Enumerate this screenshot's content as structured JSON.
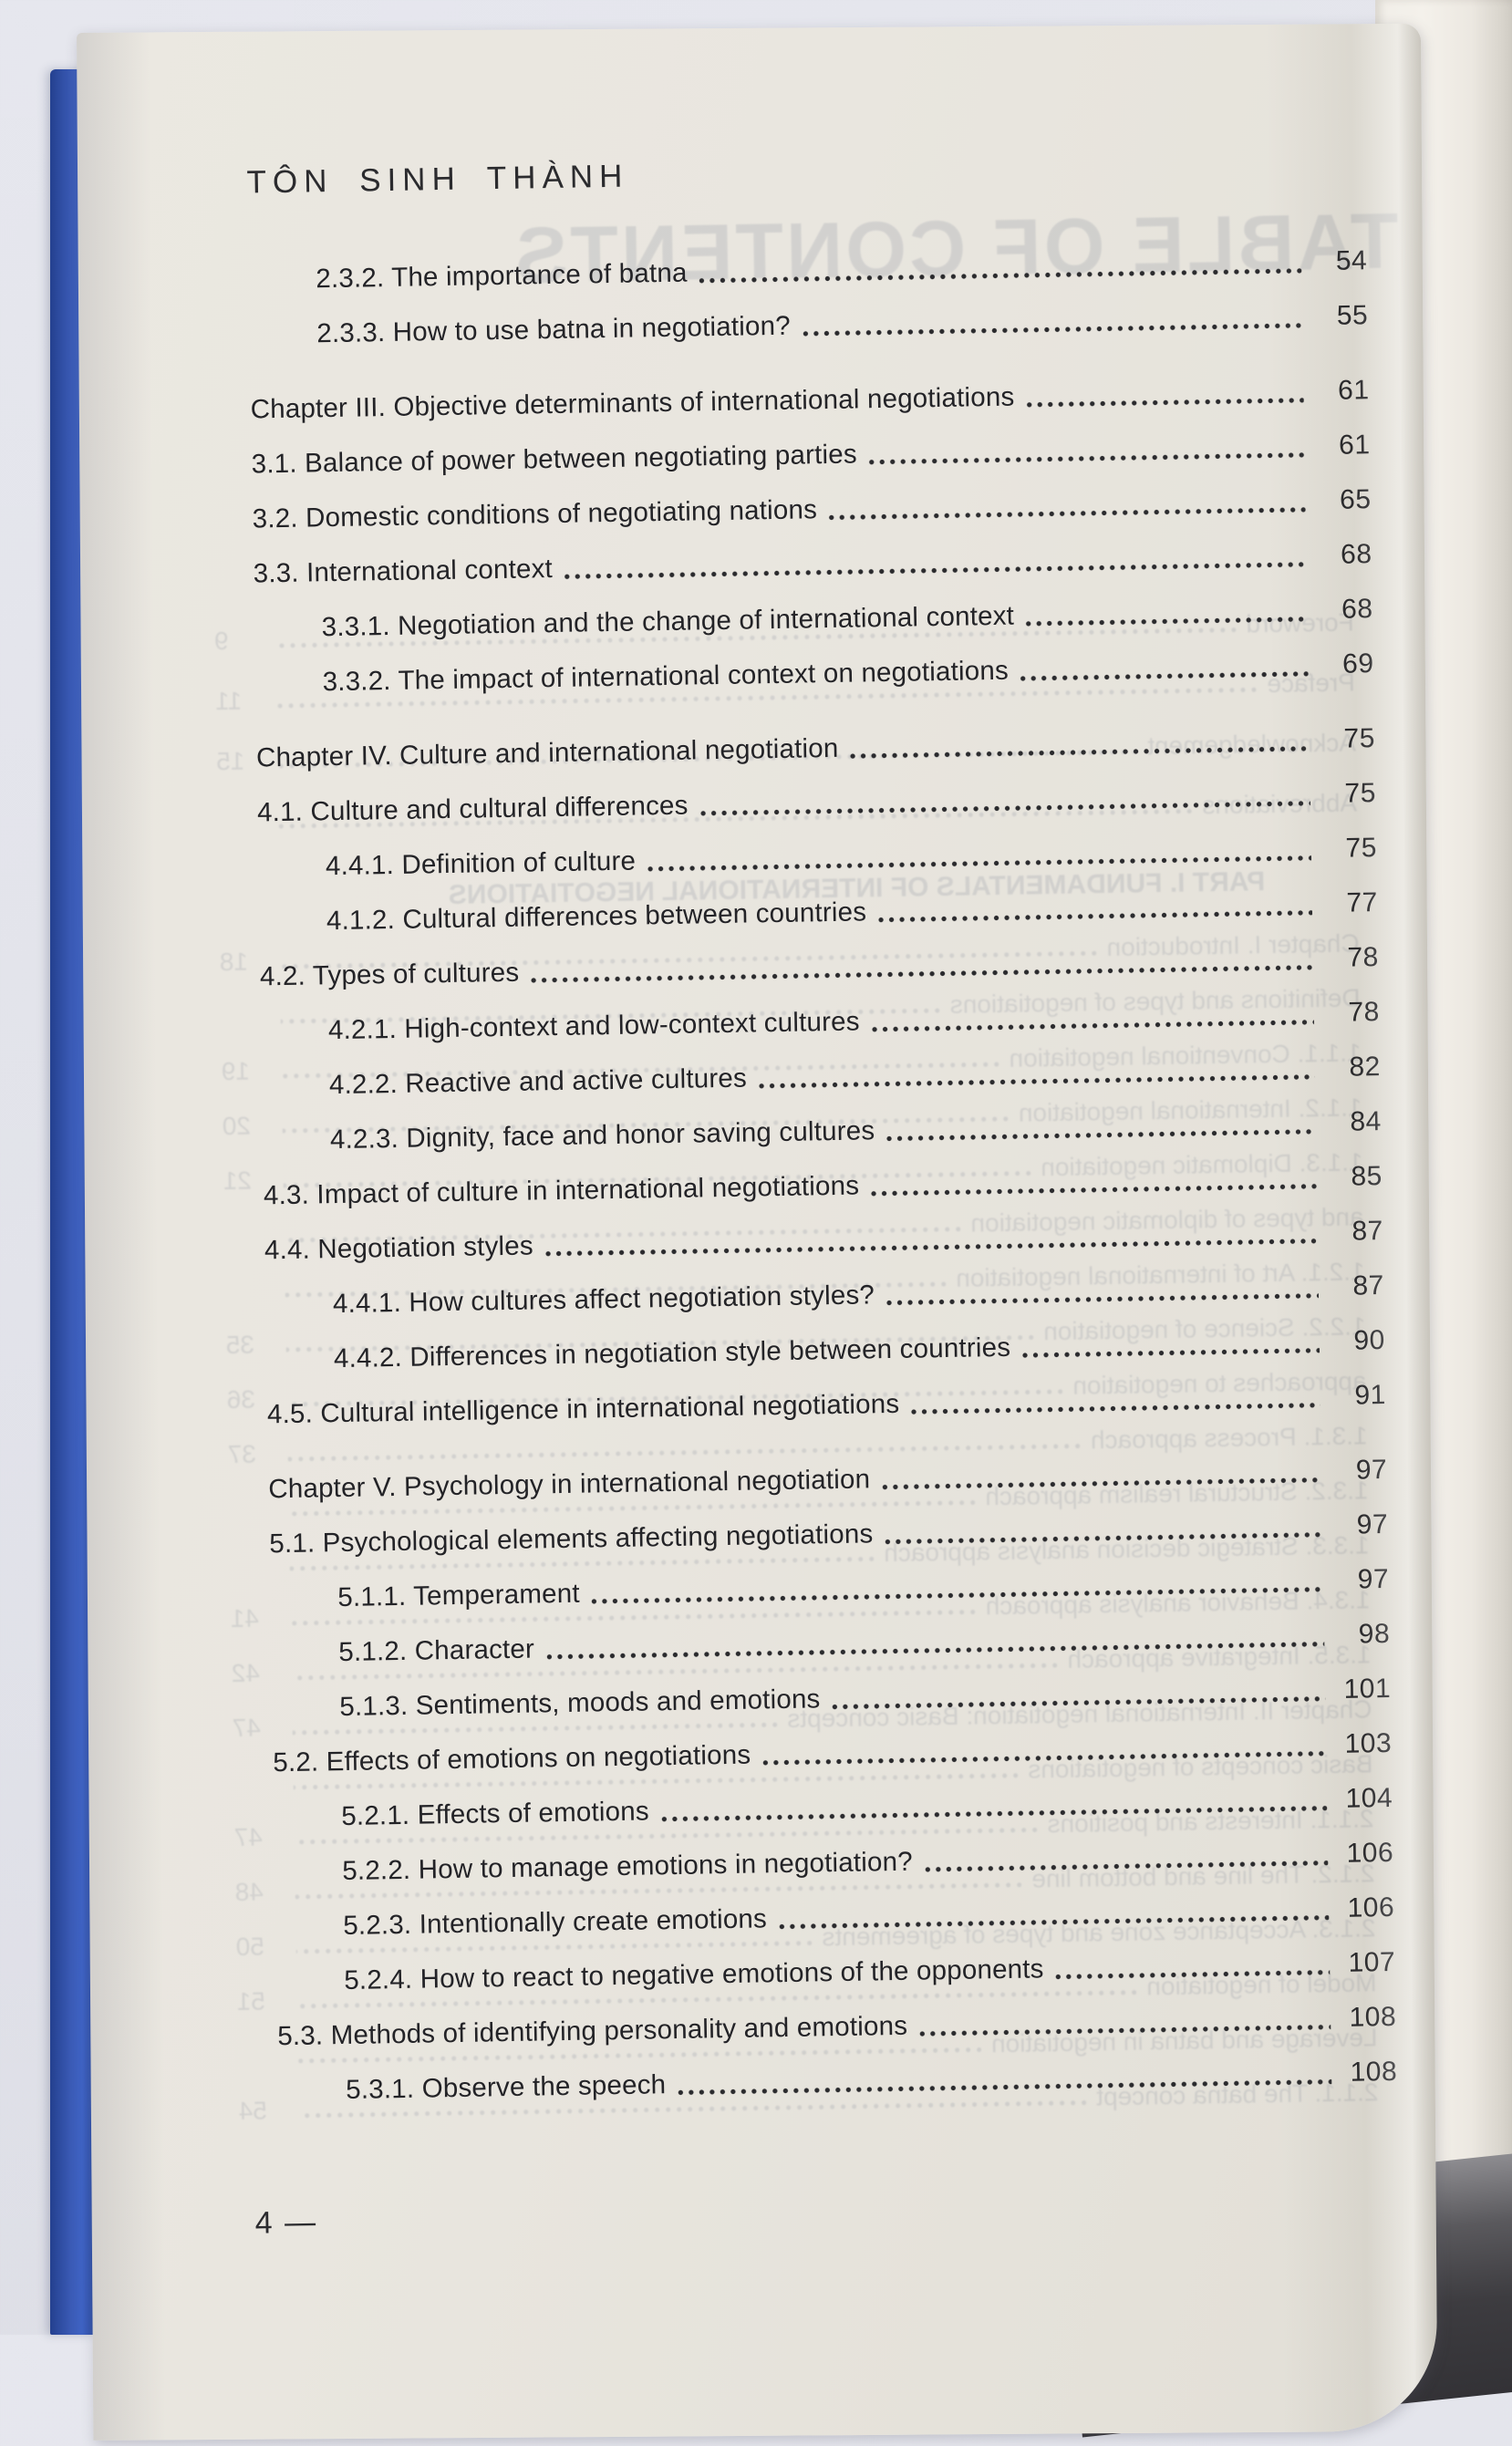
{
  "page": {
    "author_header": "TÔN SINH THÀNH",
    "page_number": "4 —"
  },
  "toc": {
    "entries": [
      {
        "label": "2.3.2. The importance of batna",
        "page": "54",
        "level": "sub"
      },
      {
        "label": "2.3.3. How to use batna in negotiation?",
        "page": "55",
        "level": "sub"
      },
      {
        "label": "Chapter III. Objective determinants of international negotiations",
        "page": "61",
        "level": "chapter"
      },
      {
        "label": "3.1. Balance of power between negotiating parties",
        "page": "61",
        "level": "section"
      },
      {
        "label": "3.2. Domestic conditions of negotiating nations",
        "page": "65",
        "level": "section"
      },
      {
        "label": "3.3. International context",
        "page": "68",
        "level": "section"
      },
      {
        "label": "3.3.1. Negotiation and the change of international context",
        "page": "68",
        "level": "sub"
      },
      {
        "label": "3.3.2. The impact of international context on negotiations",
        "page": "69",
        "level": "sub"
      },
      {
        "label": "Chapter IV. Culture and international negotiation",
        "page": "75",
        "level": "chapter"
      },
      {
        "label": "4.1. Culture and cultural differences",
        "page": "75",
        "level": "section"
      },
      {
        "label": "4.4.1. Definition of culture",
        "page": "75",
        "level": "sub"
      },
      {
        "label": "4.1.2. Cultural differences between countries",
        "page": "77",
        "level": "sub"
      },
      {
        "label": "4.2. Types of cultures",
        "page": "78",
        "level": "section"
      },
      {
        "label": "4.2.1. High-context and low-context cultures",
        "page": "78",
        "level": "sub"
      },
      {
        "label": "4.2.2. Reactive and active cultures",
        "page": "82",
        "level": "sub"
      },
      {
        "label": "4.2.3. Dignity, face and honor saving cultures",
        "page": "84",
        "level": "sub"
      },
      {
        "label": "4.3. Impact of culture in international negotiations",
        "page": "85",
        "level": "section"
      },
      {
        "label": "4.4. Negotiation styles",
        "page": "87",
        "level": "section"
      },
      {
        "label": "4.4.1. How cultures affect negotiation styles?",
        "page": "87",
        "level": "sub"
      },
      {
        "label": "4.4.2. Differences in negotiation style between countries",
        "page": "90",
        "level": "sub"
      },
      {
        "label": "4.5. Cultural intelligence in international negotiations",
        "page": "91",
        "level": "section"
      },
      {
        "label": "Chapter V. Psychology in international negotiation",
        "page": "97",
        "level": "chapter"
      },
      {
        "label": "5.1. Psychological elements affecting negotiations",
        "page": "97",
        "level": "section"
      },
      {
        "label": "5.1.1. Temperament",
        "page": "97",
        "level": "sub"
      },
      {
        "label": "5.1.2. Character",
        "page": "98",
        "level": "sub"
      },
      {
        "label": "5.1.3. Sentiments, moods and emotions",
        "page": "101",
        "level": "sub"
      },
      {
        "label": "5.2. Effects of emotions on negotiations",
        "page": "103",
        "level": "section"
      },
      {
        "label": "5.2.1. Effects of emotions",
        "page": "104",
        "level": "sub"
      },
      {
        "label": "5.2.2. How to manage emotions in negotiation?",
        "page": "106",
        "level": "sub"
      },
      {
        "label": "5.2.3. Intentionally create emotions",
        "page": "106",
        "level": "sub"
      },
      {
        "label": "5.2.4. How to react to negative emotions of the opponents",
        "page": "107",
        "level": "sub"
      },
      {
        "label": "5.3. Methods of identifying personality and emotions",
        "page": "108",
        "level": "section"
      },
      {
        "label": "5.3.1. Observe the speech",
        "page": "108",
        "level": "sub"
      }
    ]
  },
  "ghost": {
    "title": "TABLE OF CONTENTS",
    "part_heading": "PART I. FUNDAMENTALS OF INTERNATIONAL NEGOTIATIONS",
    "front_matter": [
      {
        "label": "Foreword",
        "page": "9"
      },
      {
        "label": "Preface",
        "page": "11"
      },
      {
        "label": "Acknowledgement",
        "page": "15"
      },
      {
        "label": "Abbreviations",
        "page": ""
      }
    ],
    "chapter_lines": [
      {
        "label": "Chapter I. Introduction",
        "page": "18"
      },
      {
        "label": "Definitions and types of negotiations",
        "page": ""
      },
      {
        "label": "1.1.1. Conventional negotiation",
        "page": "19"
      },
      {
        "label": "1.1.2. International negotiation",
        "page": "20"
      },
      {
        "label": "1.1.3. Diplomatic negotiation",
        "page": "21"
      },
      {
        "label": "and types of diplomatic negotiation",
        "page": ""
      },
      {
        "label": "1.2.1. Art of international negotiation",
        "page": ""
      },
      {
        "label": "1.2.2. Science of negotiation",
        "page": "35"
      },
      {
        "label": "approaches to negotiation",
        "page": "36"
      },
      {
        "label": "1.3.1. Process approach",
        "page": "37"
      },
      {
        "label": "1.3.2. Structural realism approach",
        "page": ""
      },
      {
        "label": "1.3.3. Strategic decision analysis approach",
        "page": ""
      },
      {
        "label": "1.3.4. Behavior analysis approach",
        "page": "41"
      },
      {
        "label": "1.3.5. Integrative approach",
        "page": "42"
      },
      {
        "label": "Chapter II. International negotiation: Basic concepts",
        "page": "47"
      },
      {
        "label": "Basic concepts of negotiations",
        "page": ""
      },
      {
        "label": "2.1.1. Interests and positions",
        "page": "47"
      },
      {
        "label": "2.1.2. The line and bottom line",
        "page": "48"
      },
      {
        "label": "2.1.3. Acceptance zone and types of agreements",
        "page": "50"
      },
      {
        "label": "Model of negotiation",
        "page": "51"
      },
      {
        "label": "Leverage and batna in negotiation",
        "page": ""
      },
      {
        "label": "2.1.1. The batna concept",
        "page": "54"
      }
    ]
  }
}
